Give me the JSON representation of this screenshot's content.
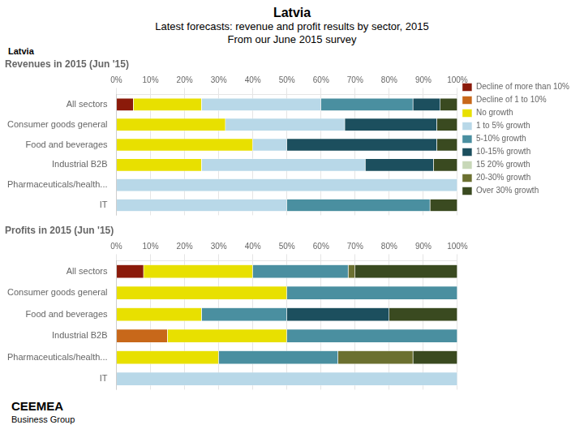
{
  "title": "Latvia",
  "subtitle": [
    "Latest forecasts: revenue and profit results by sector, 2015",
    "From our June 2015 survey"
  ],
  "annotations": [
    "CEE",
    "MEA",
    "Business Group"
  ],
  "chart_data": [
    {
      "type": "bar",
      "orientation": "horizontal",
      "stacked": true,
      "grid": true,
      "legend": "right",
      "title": "Revenues in 2015 (Jun '15)",
      "annotations": [
        "Latvia"
      ],
      "categories": [
        "All sectors",
        "Consumer goods general",
        "Food and beverages",
        "Industrial B2B",
        "Pharmaceuticals/health...",
        "IT"
      ],
      "xlim": [
        0,
        100
      ],
      "xticks": [
        {
          "value": 0,
          "label": "0%"
        },
        {
          "value": 10,
          "label": "10%"
        },
        {
          "value": 20,
          "label": "20%"
        },
        {
          "value": 30,
          "label": "30%"
        },
        {
          "value": 40,
          "label": "40%"
        },
        {
          "value": 50,
          "label": "50%"
        },
        {
          "value": 60,
          "label": "60%"
        },
        {
          "value": 70,
          "label": "70%"
        },
        {
          "value": 80,
          "label": "80%"
        },
        {
          "value": 90,
          "label": "90%"
        },
        {
          "value": 100,
          "label": "100%"
        }
      ],
      "series": [
        {
          "name": "Decline of more than 10%",
          "color": "#8B1A0A",
          "values": [
            5,
            0,
            0,
            0,
            0,
            0
          ]
        },
        {
          "name": "Decline of 1 to 10%",
          "color": "#C8681A",
          "values": [
            0,
            0,
            0,
            0,
            0,
            0
          ]
        },
        {
          "name": "No growth",
          "color": "#E8E000",
          "values": [
            20,
            32,
            40,
            25,
            0,
            0
          ]
        },
        {
          "name": "1 to 5% growth",
          "color": "#B8D8E8",
          "values": [
            35,
            35,
            10,
            48,
            100,
            50
          ]
        },
        {
          "name": "5-10% growth",
          "color": "#4A8FA0",
          "values": [
            27,
            0,
            0,
            0,
            0,
            42
          ]
        },
        {
          "name": "10-15% growth",
          "color": "#1C4F5E",
          "values": [
            8,
            27,
            44,
            20,
            0,
            0
          ]
        },
        {
          "name": "15 20% growth",
          "color": "#C8D8B8",
          "values": [
            0,
            0,
            0,
            0,
            0,
            0
          ]
        },
        {
          "name": "20-30% growth",
          "color": "#6B7030",
          "values": [
            0,
            0,
            0,
            0,
            0,
            0
          ]
        },
        {
          "name": "Over 30% growth",
          "color": "#3A4A20",
          "values": [
            5,
            6,
            6,
            7,
            0,
            8
          ]
        }
      ]
    },
    {
      "type": "bar",
      "orientation": "horizontal",
      "stacked": true,
      "grid": true,
      "title": "Profits in 2015 (Jun '15)",
      "categories": [
        "All sectors",
        "Consumer goods general",
        "Food and beverages",
        "Industrial B2B",
        "Pharmaceuticals/health...",
        "IT"
      ],
      "xlim": [
        0,
        100
      ],
      "xticks": [
        {
          "value": 0,
          "label": "0%"
        },
        {
          "value": 10,
          "label": "10%"
        },
        {
          "value": 20,
          "label": "20%"
        },
        {
          "value": 30,
          "label": "30%"
        },
        {
          "value": 40,
          "label": "40%"
        },
        {
          "value": 50,
          "label": "50%"
        },
        {
          "value": 60,
          "label": "60%"
        },
        {
          "value": 70,
          "label": "70%"
        },
        {
          "value": 80,
          "label": "80%"
        },
        {
          "value": 90,
          "label": "90%"
        },
        {
          "value": 100,
          "label": "100%"
        }
      ],
      "series": [
        {
          "name": "Decline of more than 10%",
          "color": "#8B1A0A",
          "values": [
            8,
            0,
            0,
            0,
            0,
            0
          ]
        },
        {
          "name": "Decline of 1 to 10%",
          "color": "#C8681A",
          "values": [
            0,
            0,
            0,
            15,
            0,
            0
          ]
        },
        {
          "name": "No growth",
          "color": "#E8E000",
          "values": [
            32,
            50,
            25,
            35,
            30,
            0
          ]
        },
        {
          "name": "1 to 5% growth",
          "color": "#B8D8E8",
          "values": [
            0,
            0,
            0,
            0,
            0,
            100
          ]
        },
        {
          "name": "5-10% growth",
          "color": "#4A8FA0",
          "values": [
            28,
            50,
            25,
            50,
            35,
            0
          ]
        },
        {
          "name": "10-15% growth",
          "color": "#1C4F5E",
          "values": [
            0,
            0,
            30,
            0,
            0,
            0
          ]
        },
        {
          "name": "15 20% growth",
          "color": "#C8D8B8",
          "values": [
            0,
            0,
            0,
            0,
            0,
            0
          ]
        },
        {
          "name": "20-30% growth",
          "color": "#6B7030",
          "values": [
            2,
            0,
            0,
            0,
            22,
            0
          ]
        },
        {
          "name": "Over 30% growth",
          "color": "#3A4A20",
          "values": [
            30,
            0,
            20,
            0,
            13,
            0
          ]
        }
      ]
    }
  ]
}
